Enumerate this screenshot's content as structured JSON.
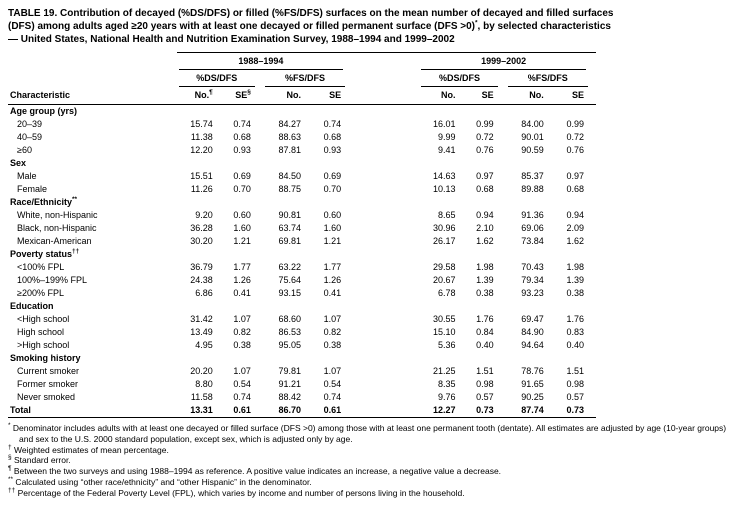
{
  "title": {
    "line1": "TABLE 19. Contribution of decayed (%DS/DFS) or filled (%FS/DFS) surfaces on the mean number of decayed and filled surfaces",
    "line2a": "(DFS) among adults aged ≥20 years with at least one decayed or filled permanent surface (DFS >0)",
    "line2_star": "*",
    "line2b": ", by selected characteristics",
    "line3": "— United States, National Health and Nutrition Examination Survey, 1988–1994 and 1999–2002"
  },
  "table": {
    "char_header": "Characteristic",
    "periods": [
      {
        "label": "1988–1994",
        "groups": [
          {
            "label": "%DS/DFS",
            "cols": [
              {
                "t": "No.",
                "s": "¶"
              },
              {
                "t": "SE",
                "s": "§"
              }
            ]
          },
          {
            "label": "%FS/DFS",
            "cols": [
              {
                "t": "No.",
                "s": ""
              },
              {
                "t": "SE",
                "s": ""
              }
            ]
          }
        ]
      },
      {
        "label": "1999–2002",
        "groups": [
          {
            "label": "%DS/DFS",
            "cols": [
              {
                "t": "No.",
                "s": ""
              },
              {
                "t": "SE",
                "s": ""
              }
            ]
          },
          {
            "label": "%FS/DFS",
            "cols": [
              {
                "t": "No.",
                "s": ""
              },
              {
                "t": "SE",
                "s": ""
              }
            ]
          }
        ]
      }
    ],
    "sections": [
      {
        "header": "Age group (yrs)",
        "sup": "",
        "rows": [
          {
            "label": "20–39",
            "values": [
              "15.74",
              "0.74",
              "84.27",
              "0.74",
              "16.01",
              "0.99",
              "84.00",
              "0.99"
            ]
          },
          {
            "label": "40–59",
            "values": [
              "11.38",
              "0.68",
              "88.63",
              "0.68",
              "9.99",
              "0.72",
              "90.01",
              "0.72"
            ]
          },
          {
            "label": "≥60",
            "values": [
              "12.20",
              "0.93",
              "87.81",
              "0.93",
              "9.41",
              "0.76",
              "90.59",
              "0.76"
            ]
          }
        ]
      },
      {
        "header": "Sex",
        "sup": "",
        "rows": [
          {
            "label": "Male",
            "values": [
              "15.51",
              "0.69",
              "84.50",
              "0.69",
              "14.63",
              "0.97",
              "85.37",
              "0.97"
            ]
          },
          {
            "label": "Female",
            "values": [
              "11.26",
              "0.70",
              "88.75",
              "0.70",
              "10.13",
              "0.68",
              "89.88",
              "0.68"
            ]
          }
        ]
      },
      {
        "header": "Race/Ethnicity",
        "sup": "**",
        "rows": [
          {
            "label": "White, non-Hispanic",
            "values": [
              "9.20",
              "0.60",
              "90.81",
              "0.60",
              "8.65",
              "0.94",
              "91.36",
              "0.94"
            ]
          },
          {
            "label": "Black, non-Hispanic",
            "values": [
              "36.28",
              "1.60",
              "63.74",
              "1.60",
              "30.96",
              "2.10",
              "69.06",
              "2.09"
            ]
          },
          {
            "label": "Mexican-American",
            "values": [
              "30.20",
              "1.21",
              "69.81",
              "1.21",
              "26.17",
              "1.62",
              "73.84",
              "1.62"
            ]
          }
        ]
      },
      {
        "header": "Poverty status",
        "sup": "††",
        "rows": [
          {
            "label": "<100% FPL",
            "values": [
              "36.79",
              "1.77",
              "63.22",
              "1.77",
              "29.58",
              "1.98",
              "70.43",
              "1.98"
            ]
          },
          {
            "label": "100%–199% FPL",
            "values": [
              "24.38",
              "1.26",
              "75.64",
              "1.26",
              "20.67",
              "1.39",
              "79.34",
              "1.39"
            ]
          },
          {
            "label": "≥200% FPL",
            "values": [
              "6.86",
              "0.41",
              "93.15",
              "0.41",
              "6.78",
              "0.38",
              "93.23",
              "0.38"
            ]
          }
        ]
      },
      {
        "header": "Education",
        "sup": "",
        "rows": [
          {
            "label": "<High school",
            "values": [
              "31.42",
              "1.07",
              "68.60",
              "1.07",
              "30.55",
              "1.76",
              "69.47",
              "1.76"
            ]
          },
          {
            "label": "High school",
            "values": [
              "13.49",
              "0.82",
              "86.53",
              "0.82",
              "15.10",
              "0.84",
              "84.90",
              "0.83"
            ]
          },
          {
            "label": ">High school",
            "values": [
              "4.95",
              "0.38",
              "95.05",
              "0.38",
              "5.36",
              "0.40",
              "94.64",
              "0.40"
            ]
          }
        ]
      },
      {
        "header": "Smoking history",
        "sup": "",
        "rows": [
          {
            "label": "Current smoker",
            "values": [
              "20.20",
              "1.07",
              "79.81",
              "1.07",
              "21.25",
              "1.51",
              "78.76",
              "1.51"
            ]
          },
          {
            "label": "Former smoker",
            "values": [
              "8.80",
              "0.54",
              "91.21",
              "0.54",
              "8.35",
              "0.98",
              "91.65",
              "0.98"
            ]
          },
          {
            "label": "Never smoked",
            "values": [
              "11.58",
              "0.74",
              "88.42",
              "0.74",
              "9.76",
              "0.57",
              "90.25",
              "0.57"
            ]
          }
        ]
      }
    ],
    "total": {
      "label": "Total",
      "values": [
        "13.31",
        "0.61",
        "86.70",
        "0.61",
        "12.27",
        "0.73",
        "87.74",
        "0.73"
      ]
    }
  },
  "footnotes": [
    {
      "marker": "*",
      "text": "Denominator includes adults with at least one decayed or filled surface (DFS >0) among those with at least one permanent tooth (dentate).  All estimates are adjusted by age (10-year groups) and sex to the U.S. 2000 standard population, except sex, which is adjusted only by age."
    },
    {
      "marker": "†",
      "text": "Weighted estimates of mean percentage."
    },
    {
      "marker": "§",
      "text": "Standard error."
    },
    {
      "marker": "¶",
      "text": "Between the two surveys and using 1988–1994 as reference. A positive value indicates an increase, a negative value a decrease."
    },
    {
      "marker": "**",
      "text": "Calculated using “other race/ethnicity” and “other Hispanic” in the denominator."
    },
    {
      "marker": "††",
      "text": "Percentage of the Federal Poverty Level (FPL), which varies by income and number of persons living in the household."
    }
  ]
}
